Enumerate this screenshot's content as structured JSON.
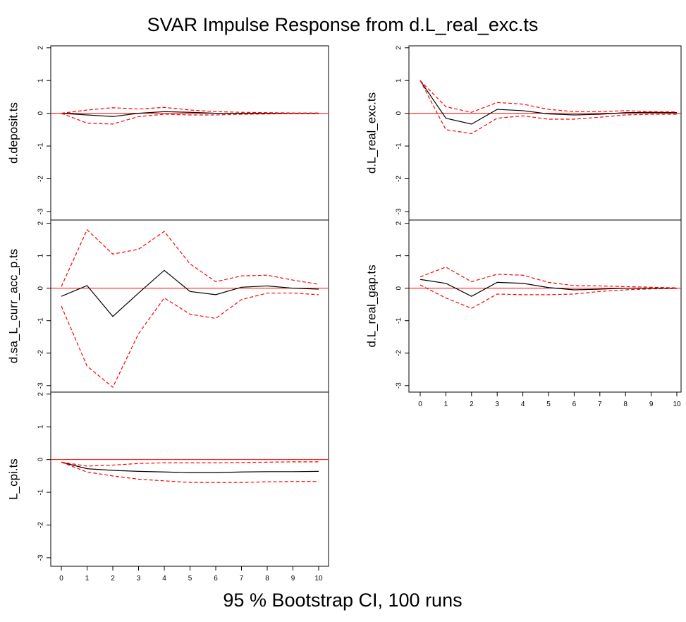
{
  "title": "SVAR Impulse Response from d.L_real_exc.ts",
  "caption": "95 % Bootstrap CI,  100 runs",
  "chart_data": [
    {
      "type": "line",
      "ylabel": "d.deposit.ts",
      "x": [
        0,
        1,
        2,
        3,
        4,
        5,
        6,
        7,
        8,
        9,
        10
      ],
      "ylim": [
        -3.26,
        2.06
      ],
      "yticks": [
        2,
        1,
        0,
        -1,
        -2,
        -3
      ],
      "refline": 0,
      "refline_color": "#ff0000",
      "series": [
        {
          "color": "#000000",
          "dash": false,
          "values": [
            0,
            -0.05,
            -0.1,
            0,
            0.05,
            0.03,
            0,
            0,
            0,
            0,
            0
          ]
        },
        {
          "color": "#ff0000",
          "dash": true,
          "values": [
            0,
            0.1,
            0.17,
            0.13,
            0.18,
            0.1,
            0.05,
            0.03,
            0.02,
            0.01,
            0.01
          ]
        },
        {
          "color": "#ff0000",
          "dash": true,
          "values": [
            0,
            -0.3,
            -0.33,
            -0.1,
            -0.03,
            -0.05,
            -0.05,
            -0.03,
            -0.02,
            -0.01,
            -0.01
          ]
        }
      ]
    },
    {
      "type": "line",
      "ylabel": "d.sa_L_curr_acc_p.ts",
      "x": [
        0,
        1,
        2,
        3,
        4,
        5,
        6,
        7,
        8,
        9,
        10
      ],
      "ylim": [
        -3.2,
        2.1
      ],
      "yticks": [
        2,
        1,
        0,
        -1,
        -2,
        -3
      ],
      "refline": 0,
      "refline_color": "#ff0000",
      "series": [
        {
          "color": "#000000",
          "dash": false,
          "values": [
            -0.25,
            0.08,
            -0.87,
            -0.15,
            0.55,
            -0.1,
            -0.2,
            0.03,
            0.07,
            0,
            -0.03
          ]
        },
        {
          "color": "#ff0000",
          "dash": true,
          "values": [
            0.05,
            1.8,
            1.05,
            1.2,
            1.75,
            0.75,
            0.2,
            0.38,
            0.4,
            0.25,
            0.12
          ]
        },
        {
          "color": "#ff0000",
          "dash": true,
          "values": [
            -0.55,
            -2.4,
            -3.05,
            -1.4,
            -0.3,
            -0.8,
            -0.93,
            -0.35,
            -0.15,
            -0.15,
            -0.2
          ]
        }
      ]
    },
    {
      "type": "line",
      "ylabel": "L_cpi.ts",
      "x": [
        0,
        1,
        2,
        3,
        4,
        5,
        6,
        7,
        8,
        9,
        10
      ],
      "ylim": [
        -3.26,
        2.06
      ],
      "yticks": [
        2,
        1,
        0,
        -1,
        -2,
        -3
      ],
      "xticks": [
        0,
        1,
        2,
        3,
        4,
        5,
        6,
        7,
        8,
        9,
        10
      ],
      "refline": 0,
      "refline_color": "#ff0000",
      "series": [
        {
          "color": "#000000",
          "dash": false,
          "values": [
            -0.08,
            -0.28,
            -0.33,
            -0.36,
            -0.38,
            -0.4,
            -0.4,
            -0.38,
            -0.37,
            -0.37,
            -0.36
          ]
        },
        {
          "color": "#ff0000",
          "dash": true,
          "values": [
            -0.08,
            -0.2,
            -0.17,
            -0.12,
            -0.1,
            -0.1,
            -0.1,
            -0.09,
            -0.08,
            -0.07,
            -0.07
          ]
        },
        {
          "color": "#ff0000",
          "dash": true,
          "values": [
            -0.08,
            -0.38,
            -0.5,
            -0.6,
            -0.65,
            -0.7,
            -0.7,
            -0.7,
            -0.68,
            -0.67,
            -0.67
          ]
        }
      ]
    },
    {
      "type": "line",
      "ylabel": "d.L_real_exc.ts",
      "x": [
        0,
        1,
        2,
        3,
        4,
        5,
        6,
        7,
        8,
        9,
        10
      ],
      "ylim": [
        -3.26,
        2.06
      ],
      "yticks": [
        2,
        1,
        0,
        -1,
        -2,
        -3
      ],
      "refline": 0,
      "refline_color": "#ff0000",
      "series": [
        {
          "color": "#000000",
          "dash": false,
          "values": [
            1,
            -0.15,
            -0.33,
            0.12,
            0.08,
            -0.02,
            -0.05,
            -0.03,
            0.02,
            0.03,
            0.02
          ]
        },
        {
          "color": "#ff0000",
          "dash": true,
          "values": [
            1,
            0.2,
            0.03,
            0.33,
            0.28,
            0.12,
            0.05,
            0.05,
            0.08,
            0.05,
            0.04
          ]
        },
        {
          "color": "#ff0000",
          "dash": true,
          "values": [
            1,
            -0.5,
            -0.62,
            -0.15,
            -0.08,
            -0.18,
            -0.18,
            -0.12,
            -0.05,
            -0.03,
            -0.03
          ]
        }
      ]
    },
    {
      "type": "line",
      "ylabel": "d.L_real_gap.ts",
      "x": [
        0,
        1,
        2,
        3,
        4,
        5,
        6,
        7,
        8,
        9,
        10
      ],
      "ylim": [
        -3.2,
        2.1
      ],
      "yticks": [
        2,
        1,
        0,
        -1,
        -2,
        -3
      ],
      "xticks": [
        0,
        1,
        2,
        3,
        4,
        5,
        6,
        7,
        8,
        9,
        10
      ],
      "refline": 0,
      "refline_color": "#ff0000",
      "series": [
        {
          "color": "#000000",
          "dash": false,
          "values": [
            0.27,
            0.15,
            -0.25,
            0.18,
            0.15,
            0.02,
            -0.05,
            -0.03,
            0,
            0,
            0
          ]
        },
        {
          "color": "#ff0000",
          "dash": true,
          "values": [
            0.35,
            0.65,
            0.2,
            0.43,
            0.4,
            0.18,
            0.08,
            0.07,
            0.05,
            0.03,
            0.01
          ]
        },
        {
          "color": "#ff0000",
          "dash": true,
          "values": [
            0.1,
            -0.3,
            -0.62,
            -0.18,
            -0.2,
            -0.2,
            -0.18,
            -0.1,
            -0.05,
            -0.02,
            -0.01
          ]
        }
      ]
    }
  ]
}
